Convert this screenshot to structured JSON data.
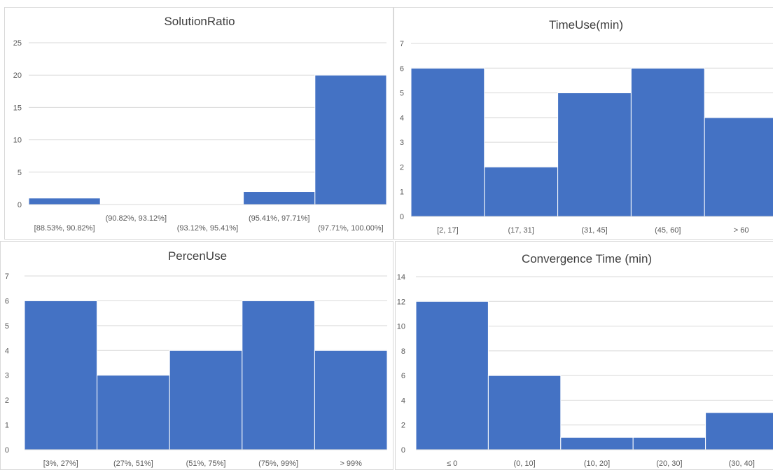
{
  "charts": [
    {
      "type": "bar",
      "title": "SolutionRatio",
      "categories": [
        "[88.53%, 90.82%]",
        "(90.82%, 93.12%]",
        "(93.12%, 95.41%]",
        "(95.41%, 97.71%]",
        "(97.71%, 100.00%]"
      ],
      "values": [
        1,
        0,
        0,
        2,
        20
      ],
      "yticks": [
        "0",
        "5",
        "10",
        "15",
        "20",
        "25"
      ],
      "ylim": [
        0,
        25
      ],
      "bar_color": "#4472C4"
    },
    {
      "type": "bar",
      "title": "TimeUse(min)",
      "categories": [
        "[2, 17]",
        "(17, 31]",
        "(31, 45]",
        "(45, 60]",
        "> 60"
      ],
      "values": [
        6,
        2,
        5,
        6,
        4
      ],
      "yticks": [
        "0",
        "1",
        "2",
        "3",
        "4",
        "5",
        "6",
        "7"
      ],
      "ylim": [
        0,
        7
      ],
      "bar_color": "#4472C4"
    },
    {
      "type": "bar",
      "title": "PercenUse",
      "categories": [
        "[3%, 27%]",
        "(27%, 51%]",
        "(51%, 75%]",
        "(75%, 99%]",
        "> 99%"
      ],
      "values": [
        6,
        3,
        4,
        6,
        4
      ],
      "yticks": [
        "0",
        "1",
        "2",
        "3",
        "4",
        "5",
        "6",
        "7"
      ],
      "ylim": [
        0,
        7
      ],
      "bar_color": "#4472C4"
    },
    {
      "type": "bar",
      "title": "Convergence Time (min)",
      "categories": [
        "≤ 0",
        "(0, 10]",
        "(10, 20]",
        "(20, 30]",
        "(30, 40]"
      ],
      "values": [
        12,
        6,
        1,
        1,
        3
      ],
      "yticks": [
        "0",
        "2",
        "4",
        "6",
        "8",
        "10",
        "12",
        "14"
      ],
      "ylim": [
        0,
        14
      ],
      "bar_color": "#4472C4"
    }
  ],
  "chart_data": [
    {
      "type": "bar",
      "title": "SolutionRatio",
      "categories": [
        "[88.53%, 90.82%]",
        "(90.82%, 93.12%]",
        "(93.12%, 95.41%]",
        "(95.41%, 97.71%]",
        "(97.71%, 100.00%]"
      ],
      "values": [
        1,
        0,
        0,
        2,
        20
      ],
      "ylim": [
        0,
        25
      ],
      "grid": true
    },
    {
      "type": "bar",
      "title": "TimeUse(min)",
      "categories": [
        "[2, 17]",
        "(17, 31]",
        "(31, 45]",
        "(45, 60]",
        "> 60"
      ],
      "values": [
        6,
        2,
        5,
        6,
        4
      ],
      "ylim": [
        0,
        7
      ],
      "grid": true
    },
    {
      "type": "bar",
      "title": "PercenUse",
      "categories": [
        "[3%, 27%]",
        "(27%, 51%]",
        "(51%, 75%]",
        "(75%, 99%]",
        "> 99%"
      ],
      "values": [
        6,
        3,
        4,
        6,
        4
      ],
      "ylim": [
        0,
        7
      ],
      "grid": true
    },
    {
      "type": "bar",
      "title": "Convergence Time (min)",
      "categories": [
        "≤ 0",
        "(0, 10]",
        "(10, 20]",
        "(20, 30]",
        "(30, 40]"
      ],
      "values": [
        12,
        6,
        1,
        1,
        3
      ],
      "ylim": [
        0,
        14
      ],
      "grid": true
    }
  ]
}
